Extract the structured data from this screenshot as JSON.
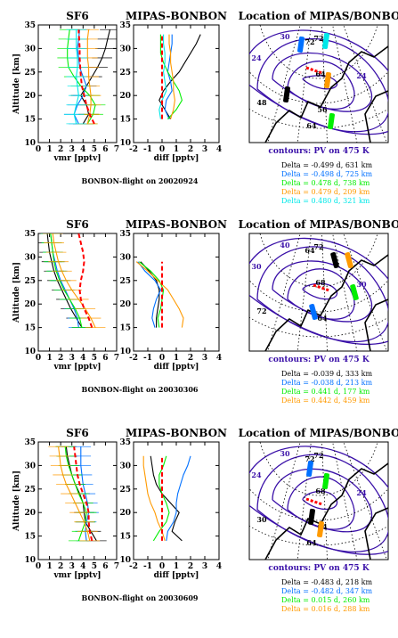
{
  "chart_data": [
    {
      "type": "line",
      "panel": "profiles",
      "title": "SF6",
      "xlabel": "vmr [pptv]",
      "ylabel": "Altitude [km]",
      "xlim": [
        0,
        7
      ],
      "ylim": [
        10,
        35
      ],
      "x_ticks": [
        "0",
        "1",
        "2",
        "3",
        "4",
        "5",
        "6",
        "7"
      ],
      "y_ticks": [
        "10",
        "15",
        "20",
        "25",
        "30",
        "35"
      ],
      "y": [
        14,
        16,
        18,
        20,
        22,
        24,
        26,
        28,
        30,
        32,
        34
      ],
      "series": [
        {
          "color": "#000000",
          "x": [
            4.0,
            4.5,
            4.3,
            3.8,
            4.3,
            4.8,
            5.3,
            5.7,
            6.0,
            6.2,
            6.4
          ]
        },
        {
          "color": "#0070ff",
          "x": [
            3.6,
            3.2,
            3.5,
            4.0,
            4.3,
            4.0,
            3.7,
            3.6,
            3.5,
            3.6,
            3.7
          ]
        },
        {
          "color": "#00ee00",
          "x": [
            4.4,
            4.9,
            5.1,
            4.6,
            3.8,
            3.2,
            2.7,
            2.6,
            2.6,
            2.7,
            2.8
          ]
        },
        {
          "color": "#ff9a00",
          "x": [
            4.4,
            4.6,
            4.7,
            4.7,
            4.6,
            4.5,
            4.5,
            4.4,
            4.4,
            4.4,
            4.5
          ]
        },
        {
          "color": "#00e8e8",
          "x": [
            3.4,
            3.2,
            3.4,
            3.6,
            3.5,
            3.4,
            3.5,
            3.5,
            3.4,
            3.4,
            3.4
          ]
        },
        {
          "color": "#ff0000",
          "style": "dashed",
          "x": [
            5.0,
            4.6,
            4.3,
            4.1,
            3.9,
            3.8,
            3.75,
            3.7,
            3.7,
            3.65,
            3.6
          ]
        }
      ]
    },
    {
      "type": "line",
      "panel": "difference",
      "title": "MIPAS-BONBON",
      "xlabel": "diff [pptv]",
      "xlim": [
        -2,
        4
      ],
      "ylim": [
        10,
        35
      ],
      "x_ticks": [
        "-2",
        "-1",
        "0",
        "1",
        "2",
        "3",
        "4"
      ],
      "y_ticks": [
        "10",
        "15",
        "20",
        "25",
        "30",
        "35"
      ],
      "y": [
        15,
        17,
        19,
        21,
        23,
        25,
        27,
        29,
        31,
        33
      ],
      "series": [
        {
          "color": "#000000",
          "x": [
            0.6,
            0.2,
            -0.2,
            0.1,
            0.6,
            1.2,
            1.6,
            2.0,
            2.4,
            2.7
          ]
        },
        {
          "color": "#0070ff",
          "x": [
            0.5,
            0.2,
            0.3,
            0.7,
            0.6,
            0.4,
            0.5,
            0.6,
            0.7,
            0.7
          ]
        },
        {
          "color": "#00ee00",
          "x": [
            0.4,
            1.0,
            1.4,
            1.2,
            0.8,
            0.4,
            0.1,
            -0.1,
            -0.1,
            -0.1
          ]
        },
        {
          "color": "#ff9a00",
          "x": [
            0.6,
            0.8,
            0.9,
            0.8,
            0.8,
            0.7,
            0.6,
            0.6,
            0.5,
            0.5
          ]
        },
        {
          "color": "#00e8e8",
          "x": [
            -0.1,
            -0.2,
            0.0,
            0.3,
            0.2,
            0.1,
            0.2,
            0.2,
            0.1,
            0.1
          ]
        },
        {
          "color": "#ff0000",
          "style": "dashed",
          "x": [
            0,
            0,
            0,
            0,
            0,
            0,
            0,
            0,
            0,
            0
          ]
        }
      ]
    },
    {
      "type": "map",
      "panel": "location",
      "title": "Location of MIPAS/BONBON",
      "caption": "contours: PV on 475 K",
      "contour_labels": [
        "24",
        "30",
        "24",
        "48",
        "72",
        "64"
      ],
      "lat_labels": [
        "72",
        "64",
        "56"
      ],
      "legend": [
        {
          "text": "Delta = -0.499 d,  631 km",
          "color": "#000000"
        },
        {
          "text": "Delta = -0.498 d,  725 km",
          "color": "#0070ff"
        },
        {
          "text": "Delta = 0.478 d,  738 km",
          "color": "#00ee00"
        },
        {
          "text": "Delta = 0.479 d,  209 km",
          "color": "#ff9a00"
        },
        {
          "text": "Delta = 0.480 d,  321 km",
          "color": "#00e8e8"
        }
      ],
      "flight": "BONBON-flight on 20020924"
    },
    {
      "type": "line",
      "panel": "profiles",
      "title": "SF6",
      "xlabel": "vmr [pptv]",
      "ylabel": "Altitude [km]",
      "xlim": [
        0,
        7
      ],
      "ylim": [
        10,
        35
      ],
      "x_ticks": [
        "0",
        "1",
        "2",
        "3",
        "4",
        "5",
        "6",
        "7"
      ],
      "y_ticks": [
        "10",
        "15",
        "20",
        "25",
        "30",
        "35"
      ],
      "y": [
        15,
        17,
        19,
        21,
        23,
        25,
        27,
        29,
        31,
        33,
        35
      ],
      "series": [
        {
          "color": "#000000",
          "x": [
            3.9,
            3.4,
            2.9,
            2.5,
            2.1,
            1.7,
            1.4,
            1.2,
            1.0,
            0.9,
            0.8
          ]
        },
        {
          "color": "#0070ff",
          "x": [
            3.6,
            3.5,
            3.2,
            2.8,
            2.4,
            2.0,
            1.7,
            1.5,
            1.3,
            1.2,
            1.1
          ]
        },
        {
          "color": "#00ee00",
          "x": [
            3.9,
            3.7,
            3.3,
            2.8,
            2.3,
            1.9,
            1.6,
            1.4,
            1.3,
            1.2,
            1.1
          ]
        },
        {
          "color": "#ff9a00",
          "x": [
            5.1,
            4.7,
            4.2,
            3.6,
            3.0,
            2.5,
            2.1,
            1.8,
            1.6,
            1.4,
            1.3
          ]
        },
        {
          "color": "#ff0000",
          "style": "dashed",
          "x": [
            4.8,
            4.5,
            4.1,
            3.8,
            3.7,
            3.8,
            4.0,
            4.1,
            4.0,
            3.8,
            3.6
          ]
        }
      ]
    },
    {
      "type": "line",
      "panel": "difference",
      "title": "MIPAS-BONBON",
      "xlabel": "diff [pptv]",
      "xlim": [
        -2,
        4
      ],
      "ylim": [
        10,
        35
      ],
      "x_ticks": [
        "-2",
        "-1",
        "0",
        "1",
        "2",
        "3",
        "4"
      ],
      "y_ticks": [
        "10",
        "15",
        "20",
        "25",
        "30",
        "35"
      ],
      "y": [
        15,
        17,
        19,
        21,
        23,
        25,
        27,
        29
      ],
      "series": [
        {
          "color": "#000000",
          "x": [
            -0.4,
            -0.4,
            -0.3,
            -0.2,
            -0.2,
            -0.4,
            -0.9,
            -1.5
          ]
        },
        {
          "color": "#0070ff",
          "x": [
            -0.5,
            -0.7,
            -0.6,
            -0.4,
            -0.1,
            -0.5,
            -1.2,
            -1.7
          ]
        },
        {
          "color": "#00ee00",
          "x": [
            -0.2,
            -0.3,
            -0.1,
            0.0,
            0.1,
            -0.2,
            -0.8,
            -1.6
          ]
        },
        {
          "color": "#ff9a00",
          "x": [
            1.4,
            1.5,
            1.2,
            0.8,
            0.4,
            -0.3,
            -1.0,
            -1.8
          ]
        },
        {
          "color": "#ff0000",
          "style": "dashed",
          "x": [
            0,
            0,
            0,
            0,
            0,
            0,
            0,
            0
          ]
        }
      ]
    },
    {
      "type": "map",
      "panel": "location",
      "title": "Location of MIPAS/BONBON",
      "caption": "contours: PV on 475 K",
      "contour_labels": [
        "30",
        "40",
        "30",
        "72",
        "64"
      ],
      "lat_labels": [
        "72",
        "68",
        "64"
      ],
      "legend": [
        {
          "text": "Delta = -0.039 d,  333 km",
          "color": "#000000"
        },
        {
          "text": "Delta = -0.038 d,  213 km",
          "color": "#0070ff"
        },
        {
          "text": "Delta = 0.441 d,  177 km",
          "color": "#00ee00"
        },
        {
          "text": "Delta = 0.442 d,  459 km",
          "color": "#ff9a00"
        }
      ],
      "flight": "BONBON-flight on 20030306"
    },
    {
      "type": "line",
      "panel": "profiles",
      "title": "SF6",
      "xlabel": "vmr [pptv]",
      "ylabel": "Altitude [km]",
      "xlim": [
        0,
        7
      ],
      "ylim": [
        10,
        35
      ],
      "x_ticks": [
        "0",
        "1",
        "2",
        "3",
        "4",
        "5",
        "6",
        "7"
      ],
      "y_ticks": [
        "10",
        "15",
        "20",
        "25",
        "30",
        "35"
      ],
      "y": [
        14,
        16,
        18,
        20,
        22,
        24,
        26,
        28,
        30,
        32,
        34
      ],
      "series": [
        {
          "color": "#000000",
          "x": [
            5.2,
            4.7,
            4.2,
            4.1,
            4.0,
            3.7,
            3.3,
            3.0,
            2.8,
            2.6,
            2.5
          ]
        },
        {
          "color": "#0070ff",
          "x": [
            4.3,
            4.2,
            4.3,
            4.5,
            4.4,
            4.2,
            4.0,
            3.9,
            3.8,
            3.8,
            3.8
          ]
        },
        {
          "color": "#00ee00",
          "x": [
            3.6,
            3.9,
            4.2,
            4.3,
            4.0,
            3.6,
            3.3,
            3.0,
            2.7,
            2.5,
            2.4
          ]
        },
        {
          "color": "#ff9a00",
          "x": [
            4.6,
            4.4,
            4.1,
            3.7,
            3.3,
            2.9,
            2.5,
            2.2,
            2.0,
            1.9,
            1.8
          ]
        },
        {
          "color": "#ff0000",
          "style": "dashed",
          "x": [
            4.8,
            4.6,
            4.5,
            4.5,
            4.3,
            4.0,
            3.7,
            3.5,
            3.4,
            3.3,
            3.2
          ]
        }
      ]
    },
    {
      "type": "line",
      "panel": "difference",
      "title": "MIPAS-BONBON",
      "xlabel": "diff [pptv]",
      "xlim": [
        -2,
        4
      ],
      "ylim": [
        10,
        35
      ],
      "x_ticks": [
        "-2",
        "-1",
        "0",
        "1",
        "2",
        "3",
        "4"
      ],
      "y_ticks": [
        "10",
        "15",
        "20",
        "25",
        "30",
        "35"
      ],
      "y": [
        14,
        16,
        18,
        20,
        22,
        24,
        26,
        28,
        30,
        32
      ],
      "series": [
        {
          "color": "#000000",
          "x": [
            1.4,
            0.7,
            0.9,
            1.2,
            0.6,
            0.0,
            -0.4,
            -0.6,
            -0.7,
            -0.8
          ]
        },
        {
          "color": "#0070ff",
          "x": [
            0.3,
            0.4,
            0.8,
            1.0,
            1.0,
            1.1,
            1.3,
            1.5,
            1.8,
            2.0
          ]
        },
        {
          "color": "#00ee00",
          "x": [
            -0.6,
            -0.2,
            0.3,
            0.5,
            0.3,
            0.0,
            -0.2,
            -0.2,
            0.1,
            0.3
          ]
        },
        {
          "color": "#ff9a00",
          "x": [
            0.2,
            0.0,
            -0.3,
            -0.5,
            -0.8,
            -1.0,
            -1.1,
            -1.2,
            -1.3,
            -1.3
          ]
        },
        {
          "color": "#ff0000",
          "style": "dashed",
          "x": [
            0,
            0,
            0,
            0,
            0,
            0,
            0,
            0,
            0,
            0
          ]
        }
      ]
    },
    {
      "type": "map",
      "panel": "location",
      "title": "Location of MIPAS/BONBON",
      "caption": "contours: PV on 475 K",
      "contour_labels": [
        "24",
        "30",
        "24",
        "30",
        "72",
        "64"
      ],
      "lat_labels": [
        "72",
        "68",
        "64"
      ],
      "legend": [
        {
          "text": "Delta = -0.483 d,  218 km",
          "color": "#000000"
        },
        {
          "text": "Delta = -0.482 d,  347 km",
          "color": "#0070ff"
        },
        {
          "text": "Delta = 0.015 d,  260 km",
          "color": "#00ee00"
        },
        {
          "text": "Delta = 0.016 d,  288 km",
          "color": "#ff9a00"
        }
      ],
      "flight": "BONBON-flight on 20030609"
    }
  ]
}
